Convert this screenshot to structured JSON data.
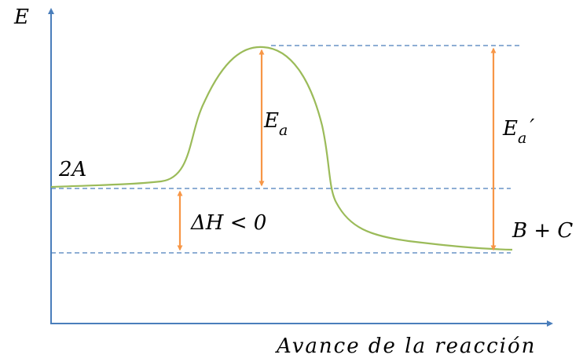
{
  "axes": {
    "y_label": "E",
    "x_label": "Avance de la reacción"
  },
  "labels": {
    "reactants": "2A",
    "products": "B + C",
    "activation_forward": {
      "text": "E",
      "subscript": "a"
    },
    "activation_reverse": {
      "text": "E",
      "subscript": "a",
      "prime": "′"
    },
    "enthalpy": "ΔH < 0"
  }
}
